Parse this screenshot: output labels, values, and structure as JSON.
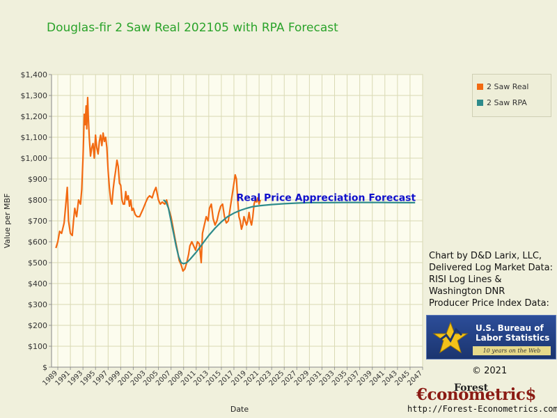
{
  "chart_data": {
    "type": "line",
    "title": "Douglas-fir 2 Saw Real 202105 with RPA Forecast",
    "xlabel": "Date",
    "ylabel": "Value per MBF",
    "xlim": [
      1988,
      2047
    ],
    "ylim": [
      0,
      1400
    ],
    "yticks": [
      0,
      100,
      200,
      300,
      400,
      500,
      600,
      700,
      800,
      900,
      1000,
      1100,
      1200,
      1300,
      1400
    ],
    "ytick_labels": [
      "$",
      "$100",
      "$200",
      "$300",
      "$400",
      "$500",
      "$600",
      "$700",
      "$800",
      "$900",
      "$1,000",
      "$1,100",
      "$1,200",
      "$1,300",
      "$1,400"
    ],
    "xticks": [
      1989,
      1991,
      1993,
      1995,
      1997,
      1999,
      2001,
      2003,
      2005,
      2007,
      2009,
      2011,
      2013,
      2015,
      2017,
      2019,
      2021,
      2023,
      2025,
      2027,
      2029,
      2031,
      2033,
      2035,
      2037,
      2039,
      2041,
      2043,
      2045,
      2047
    ],
    "xtick_labels": [
      "1989",
      "1991",
      "1993",
      "1995",
      "1997",
      "1999",
      "2001",
      "2003",
      "2005",
      "2007",
      "2009",
      "2011",
      "2013",
      "2015",
      "2017",
      "2019",
      "2021",
      "2023",
      "2025",
      "2027",
      "2029",
      "2031",
      "2033",
      "2035",
      "2037",
      "2039",
      "2041",
      "2043",
      "2045",
      "2047"
    ],
    "grid": true,
    "legend_position": "top-right",
    "series": [
      {
        "name": "2 Saw Real",
        "color": "#f26a12",
        "points": [
          [
            1988.7,
            570
          ],
          [
            1989.0,
            600
          ],
          [
            1989.3,
            650
          ],
          [
            1989.6,
            640
          ],
          [
            1990.0,
            690
          ],
          [
            1990.3,
            790
          ],
          [
            1990.5,
            860
          ],
          [
            1990.7,
            700
          ],
          [
            1991.0,
            640
          ],
          [
            1991.3,
            630
          ],
          [
            1991.5,
            700
          ],
          [
            1991.7,
            760
          ],
          [
            1992.0,
            720
          ],
          [
            1992.3,
            800
          ],
          [
            1992.6,
            780
          ],
          [
            1992.8,
            850
          ],
          [
            1993.0,
            1000
          ],
          [
            1993.1,
            1100
          ],
          [
            1993.2,
            1210
          ],
          [
            1993.35,
            1160
          ],
          [
            1993.5,
            1250
          ],
          [
            1993.6,
            1140
          ],
          [
            1993.75,
            1290
          ],
          [
            1993.85,
            1200
          ],
          [
            1994.0,
            1100
          ],
          [
            1994.2,
            1010
          ],
          [
            1994.4,
            1050
          ],
          [
            1994.6,
            1070
          ],
          [
            1994.8,
            1000
          ],
          [
            1995.0,
            1110
          ],
          [
            1995.2,
            1050
          ],
          [
            1995.4,
            1020
          ],
          [
            1995.6,
            1080
          ],
          [
            1995.8,
            1110
          ],
          [
            1996.0,
            1060
          ],
          [
            1996.2,
            1120
          ],
          [
            1996.4,
            1080
          ],
          [
            1996.6,
            1100
          ],
          [
            1996.8,
            1050
          ],
          [
            1997.0,
            940
          ],
          [
            1997.2,
            860
          ],
          [
            1997.4,
            800
          ],
          [
            1997.6,
            780
          ],
          [
            1997.8,
            850
          ],
          [
            1998.0,
            900
          ],
          [
            1998.2,
            940
          ],
          [
            1998.4,
            990
          ],
          [
            1998.6,
            960
          ],
          [
            1998.8,
            880
          ],
          [
            1999.0,
            870
          ],
          [
            1999.2,
            800
          ],
          [
            1999.4,
            780
          ],
          [
            1999.6,
            780
          ],
          [
            1999.8,
            840
          ],
          [
            2000.0,
            800
          ],
          [
            2000.2,
            820
          ],
          [
            2000.4,
            770
          ],
          [
            2000.6,
            800
          ],
          [
            2000.8,
            750
          ],
          [
            2001.0,
            760
          ],
          [
            2001.3,
            730
          ],
          [
            2001.6,
            720
          ],
          [
            2002.0,
            720
          ],
          [
            2002.3,
            740
          ],
          [
            2002.6,
            760
          ],
          [
            2003.0,
            790
          ],
          [
            2003.3,
            810
          ],
          [
            2003.6,
            820
          ],
          [
            2004.0,
            810
          ],
          [
            2004.3,
            840
          ],
          [
            2004.6,
            860
          ],
          [
            2005.0,
            800
          ],
          [
            2005.3,
            780
          ],
          [
            2005.6,
            790
          ],
          [
            2006.0,
            780
          ],
          [
            2006.3,
            800
          ],
          [
            2006.6,
            760
          ],
          [
            2007.0,
            720
          ],
          [
            2007.3,
            670
          ],
          [
            2007.6,
            620
          ],
          [
            2008.0,
            560
          ],
          [
            2008.3,
            510
          ],
          [
            2008.6,
            490
          ],
          [
            2008.9,
            460
          ],
          [
            2009.2,
            470
          ],
          [
            2009.5,
            500
          ],
          [
            2009.8,
            540
          ],
          [
            2010.0,
            580
          ],
          [
            2010.3,
            600
          ],
          [
            2010.6,
            580
          ],
          [
            2010.9,
            560
          ],
          [
            2011.2,
            600
          ],
          [
            2011.5,
            590
          ],
          [
            2011.8,
            500
          ],
          [
            2012.0,
            640
          ],
          [
            2012.3,
            680
          ],
          [
            2012.6,
            720
          ],
          [
            2012.9,
            700
          ],
          [
            2013.1,
            760
          ],
          [
            2013.4,
            780
          ],
          [
            2013.7,
            710
          ],
          [
            2014.0,
            680
          ],
          [
            2014.3,
            700
          ],
          [
            2014.6,
            740
          ],
          [
            2014.9,
            770
          ],
          [
            2015.2,
            780
          ],
          [
            2015.5,
            720
          ],
          [
            2015.8,
            690
          ],
          [
            2016.1,
            700
          ],
          [
            2016.4,
            760
          ],
          [
            2016.7,
            820
          ],
          [
            2017.0,
            880
          ],
          [
            2017.2,
            920
          ],
          [
            2017.4,
            900
          ],
          [
            2017.6,
            800
          ],
          [
            2017.8,
            720
          ],
          [
            2018.0,
            700
          ],
          [
            2018.2,
            660
          ],
          [
            2018.4,
            680
          ],
          [
            2018.6,
            720
          ],
          [
            2018.8,
            700
          ],
          [
            2019.0,
            680
          ],
          [
            2019.2,
            700
          ],
          [
            2019.4,
            740
          ],
          [
            2019.6,
            700
          ],
          [
            2019.8,
            680
          ],
          [
            2020.0,
            720
          ],
          [
            2020.2,
            780
          ],
          [
            2020.4,
            800
          ],
          [
            2020.6,
            790
          ],
          [
            2020.8,
            810
          ],
          [
            2021.0,
            780
          ],
          [
            2021.2,
            800
          ]
        ]
      },
      {
        "name": "2 Saw RPA",
        "color": "#2e8b8b",
        "points": [
          [
            2005.8,
            800
          ],
          [
            2006.2,
            790
          ],
          [
            2006.6,
            760
          ],
          [
            2007.0,
            700
          ],
          [
            2007.4,
            640
          ],
          [
            2007.8,
            580
          ],
          [
            2008.2,
            530
          ],
          [
            2008.6,
            500
          ],
          [
            2009.0,
            495
          ],
          [
            2009.5,
            500
          ],
          [
            2010.0,
            515
          ],
          [
            2011.0,
            550
          ],
          [
            2012.0,
            590
          ],
          [
            2013.0,
            630
          ],
          [
            2014.0,
            665
          ],
          [
            2015.0,
            695
          ],
          [
            2016.0,
            720
          ],
          [
            2017.0,
            737
          ],
          [
            2018.0,
            750
          ],
          [
            2019.0,
            760
          ],
          [
            2020.0,
            768
          ],
          [
            2021.0,
            772
          ],
          [
            2023.0,
            778
          ],
          [
            2025.0,
            782
          ],
          [
            2027.0,
            785
          ],
          [
            2029.0,
            787
          ],
          [
            2031.0,
            787
          ],
          [
            2035.0,
            788
          ],
          [
            2040.0,
            788
          ],
          [
            2045.0,
            787
          ],
          [
            2045.8,
            787
          ]
        ]
      }
    ],
    "annotations": [
      {
        "text": "Real Price Appreciation Forecast",
        "color": "#1111cc",
        "x": 2017.4,
        "y": 795
      }
    ]
  },
  "legend": {
    "items": [
      {
        "label": "2 Saw Real",
        "color": "#f26a12"
      },
      {
        "label": "2 Saw RPA",
        "color": "#2e8b8b"
      }
    ]
  },
  "credits": {
    "lines": [
      "Chart by D&D Larix, LLC,",
      "Delivered Log Market Data:",
      "RISI Log Lines &",
      "Washington DNR",
      "Producer Price Index Data:"
    ]
  },
  "bls_logo": {
    "line1": "U.S. Bureau of",
    "line2": "Labor Statistics",
    "banner": "10 years on the Web"
  },
  "copyright": "© 2021",
  "brand": {
    "forest": "Forest",
    "name": "€conometric$",
    "url": "http://Forest-Econometrics.com/"
  }
}
